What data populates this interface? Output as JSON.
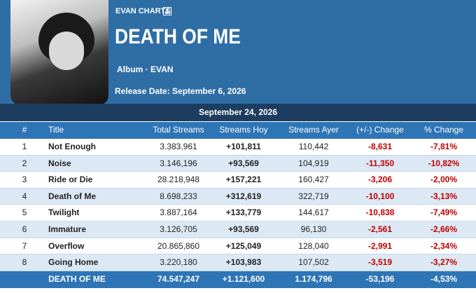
{
  "header": {
    "brand": "EVAN CHARTS",
    "title": "DEATH OF ME",
    "album": "Album · EVAN",
    "release": "Release Date: September 6, 2026"
  },
  "table": {
    "date": "September 24, 2026",
    "columns": [
      "#",
      "Title",
      "Total Streams",
      "Streams Hoy",
      "Streams Ayer",
      "(+/-) Change",
      "% Change"
    ],
    "rows": [
      [
        "1",
        "Not Enough",
        "3.383,961",
        "+101,811",
        "110,442",
        "-8,631",
        "-7,81%"
      ],
      [
        "2",
        "Noise",
        "3.146,196",
        "+93,569",
        "104,919",
        "-11,350",
        "-10,82%"
      ],
      [
        "3",
        "Ride or Die",
        "28.218,948",
        "+157,221",
        "160,427",
        "-3,206",
        "-2,00%"
      ],
      [
        "4",
        "Death of Me",
        "8.698,233",
        "+312,619",
        "322,719",
        "-10,100",
        "-3,13%"
      ],
      [
        "5",
        "Twilight",
        "3.887,164",
        "+133,779",
        "144,617",
        "-10,838",
        "-7,49%"
      ],
      [
        "6",
        "Immature",
        "3.126,705",
        "+93,569",
        "96,130",
        "-2,561",
        "-2,66%"
      ],
      [
        "7",
        "Overflow",
        "20.865,860",
        "+125,049",
        "128,040",
        "-2,991",
        "-2,34%"
      ],
      [
        "8",
        "Going Home",
        "3.220,180",
        "+103,983",
        "107,502",
        "-3,519",
        "-3,27%"
      ]
    ],
    "total": [
      "DEATH OF ME",
      "74.547,247",
      "+1.121,600",
      "1.174,796",
      "-53,196",
      "-4,53%"
    ]
  }
}
